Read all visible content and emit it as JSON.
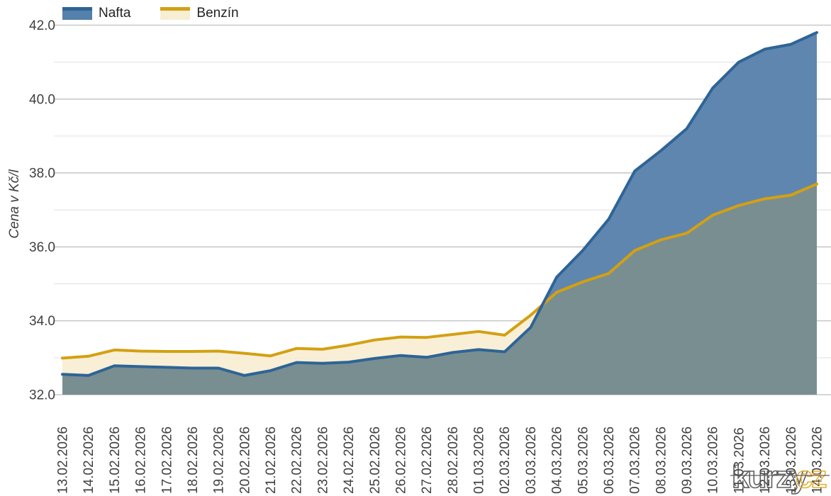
{
  "watermark": {
    "gray_text": "kurzy",
    "gold_text": "cz",
    "gray_color": "#4d4d4d",
    "gold_color": "#e4a71e"
  },
  "colors": {
    "background": "#ffffff",
    "tick_text": "#3f3f3f"
  },
  "chart_data": {
    "type": "area",
    "title": "",
    "xlabel": "",
    "ylabel": "Cena v Kč/l",
    "ylim": [
      32.0,
      42.0
    ],
    "y_tick_labels": [
      "42.0",
      "40.0",
      "38.0",
      "36.0",
      "34.0",
      "32.0"
    ],
    "grid": true,
    "grid_major_color": "#c9c9c9",
    "grid_minor_color": "#e3e3e3",
    "legend_position": "top-left",
    "x_tick_rotation": -90,
    "overlap_fill": "#74898e",
    "categories": [
      "13.02.2026",
      "14.02.2026",
      "15.02.2026",
      "16.02.2026",
      "17.02.2026",
      "18.02.2026",
      "19.02.2026",
      "20.02.2026",
      "21.02.2026",
      "22.02.2026",
      "23.02.2026",
      "24.02.2026",
      "25.02.2026",
      "26.02.2026",
      "27.02.2026",
      "28.02.2026",
      "01.03.2026",
      "02.03.2026",
      "03.03.2026",
      "04.03.2026",
      "05.03.2026",
      "06.03.2026",
      "07.03.2026",
      "08.03.2026",
      "09.03.2026",
      "10.03.2026",
      "11.03.2026",
      "12.03.2026",
      "13.03.2026",
      "14.03.2026"
    ],
    "series": [
      {
        "name": "Nafta",
        "color": "#2e6496",
        "fill": "#5a82ac",
        "values": [
          32.55,
          32.52,
          32.78,
          32.76,
          32.74,
          32.72,
          32.72,
          32.52,
          32.65,
          32.87,
          32.85,
          32.88,
          32.98,
          33.06,
          33.01,
          33.14,
          33.22,
          33.16,
          33.82,
          35.18,
          35.9,
          36.75,
          38.05,
          38.6,
          39.2,
          40.3,
          41.0,
          41.35,
          41.48,
          41.8
        ]
      },
      {
        "name": "Benzín",
        "color": "#d4a012",
        "fill": "#f7eed3",
        "values": [
          32.99,
          33.04,
          33.21,
          33.18,
          33.17,
          33.17,
          33.18,
          33.12,
          33.05,
          33.25,
          33.23,
          33.34,
          33.48,
          33.56,
          33.55,
          33.63,
          33.71,
          33.61,
          34.15,
          34.77,
          35.05,
          35.28,
          35.9,
          36.19,
          36.37,
          36.86,
          37.12,
          37.3,
          37.4,
          37.7
        ]
      }
    ]
  }
}
